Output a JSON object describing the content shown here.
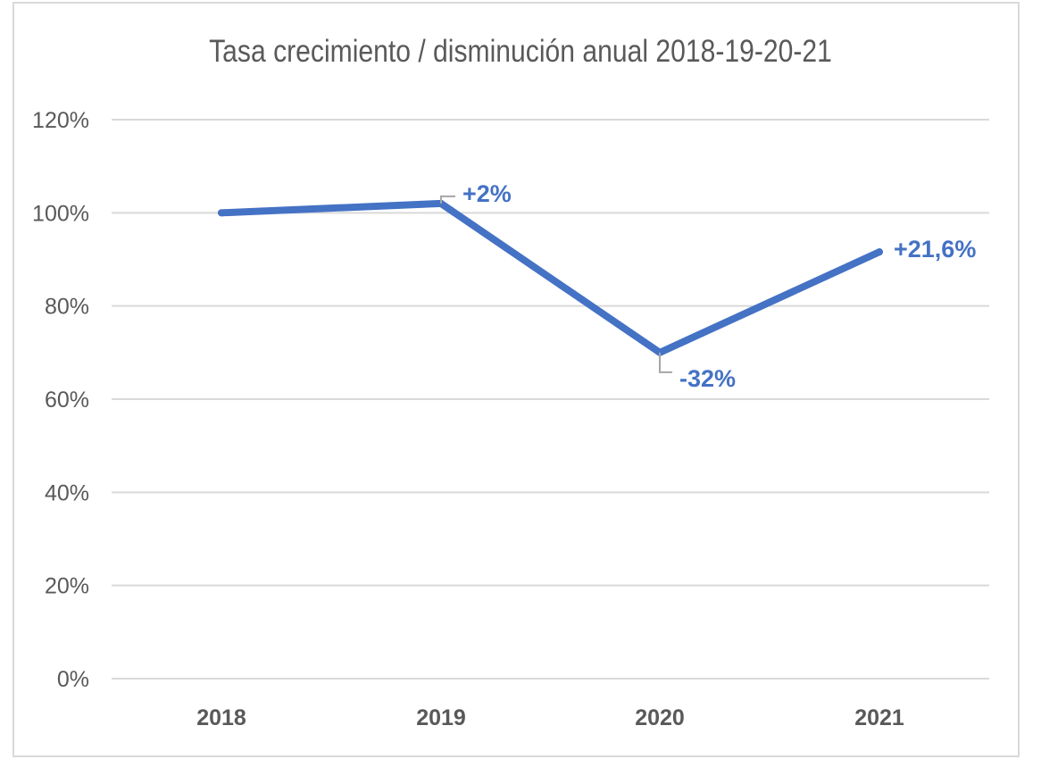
{
  "chart_data": {
    "type": "line",
    "title": "Tasa crecimiento / disminución anual 2018-19-20-21",
    "categories": [
      "2018",
      "2019",
      "2020",
      "2021"
    ],
    "series": [
      {
        "values": [
          100,
          102,
          70,
          91.6
        ],
        "data_labels": [
          "",
          "+2%",
          "-32%",
          "+21,6%"
        ],
        "color": "#4472c4"
      }
    ],
    "y_ticks": [
      "0%",
      "20%",
      "40%",
      "60%",
      "80%",
      "100%",
      "120%"
    ],
    "ylim": [
      0,
      120
    ],
    "y_tick_values": [
      0,
      20,
      40,
      60,
      80,
      100,
      120
    ],
    "grid": true,
    "legend": "none",
    "gridline_color": "#d9d9d9",
    "label_leader_color": "#a6a6a6"
  }
}
